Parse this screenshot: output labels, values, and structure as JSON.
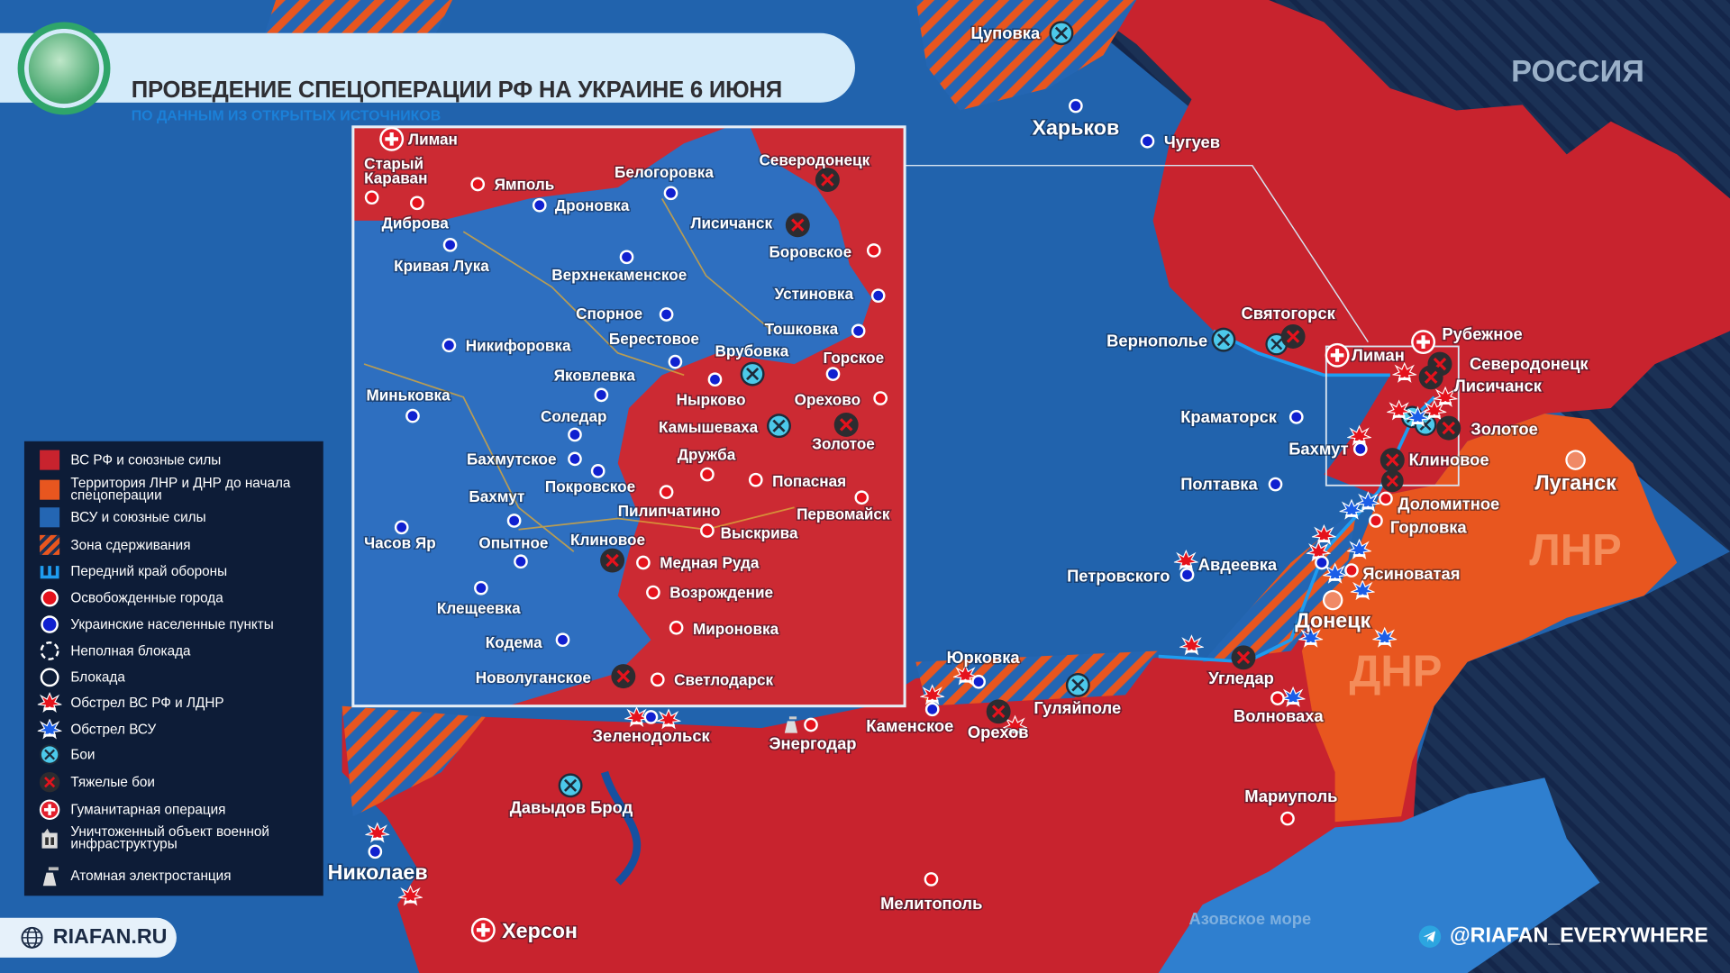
{
  "header": {
    "title": "ПРОВЕДЕНИЕ СПЕЦОПЕРАЦИИ РФ НА УКРАИНЕ 6 ИЮНЯ",
    "subtitle": "ПО ДАННЫМ ИЗ ОТКРЫТЫХ ИСТОЧНИКОВ",
    "logo_icon": "globe-europe-icon"
  },
  "colors": {
    "russian_forces": "#c8232e",
    "lnr_dnr_territory": "#e8561f",
    "ukrainian_forces": "#2466b3",
    "contain_zone_stripe": "#e8561f",
    "russia_territory": "#1b3155",
    "sea": "#2f7fcf"
  },
  "regions": {
    "russia": "РОССИЯ",
    "lnr": "ЛНР",
    "dnr": "ДНР",
    "sea": "Азовское море"
  },
  "legend": {
    "items": [
      {
        "label": "ВС РФ и союзные силы",
        "icon": "red-square"
      },
      {
        "label": "Территория ЛНР и ДНР до начала спецоперации",
        "icon": "orange-square"
      },
      {
        "label": "ВСУ и союзные силы",
        "icon": "blue-square"
      },
      {
        "label": "Зона сдерживания",
        "icon": "striped-square"
      },
      {
        "label": "Передний край обороны",
        "icon": "defense-line-icon"
      },
      {
        "label": "Освобожденные города",
        "icon": "red-dot"
      },
      {
        "label": "Украинские населенные пункты",
        "icon": "blue-dot"
      },
      {
        "label": "Неполная блокада",
        "icon": "dashed-circle"
      },
      {
        "label": "Блокада",
        "icon": "circle"
      },
      {
        "label": "Обстрел ВС РФ и ЛДНР",
        "icon": "red-explosion"
      },
      {
        "label": "Обстрел ВСУ",
        "icon": "blue-explosion"
      },
      {
        "label": "Бои",
        "icon": "battle-icon"
      },
      {
        "label": "Тяжелые бои",
        "icon": "heavy-battle-icon"
      },
      {
        "label": "Гуманитарная операция",
        "icon": "humanitarian-icon"
      },
      {
        "label": "Уничтоженный объект военной инфраструктуры",
        "icon": "destroyed-facility-icon"
      },
      {
        "label": "Атомная электростанция",
        "icon": "nuclear-plant-icon"
      }
    ]
  },
  "main_map": {
    "towns": [
      {
        "name": "Цуповка",
        "marker": "battle"
      },
      {
        "name": "Харьков",
        "marker": "ukrainian"
      },
      {
        "name": "Чугуев",
        "marker": "ukrainian"
      },
      {
        "name": "Святогорск",
        "marker": "heavy-battle"
      },
      {
        "name": "Вернополье",
        "marker": "battle"
      },
      {
        "name": "Лиман",
        "marker": "humanitarian"
      },
      {
        "name": "Рубежное",
        "marker": "humanitarian"
      },
      {
        "name": "Северодонецк",
        "marker": "heavy-battle"
      },
      {
        "name": "Лисичанск",
        "marker": "heavy-battle"
      },
      {
        "name": "Краматорск",
        "marker": "ukrainian"
      },
      {
        "name": "Золотое",
        "marker": "heavy-battle"
      },
      {
        "name": "Бахмут",
        "marker": "ukrainian"
      },
      {
        "name": "Клиновое",
        "marker": "heavy-battle"
      },
      {
        "name": "Луганск",
        "marker": "capital"
      },
      {
        "name": "Полтавка",
        "marker": "ukrainian"
      },
      {
        "name": "Доломитное",
        "marker": "liberated"
      },
      {
        "name": "Горловка",
        "marker": "liberated"
      },
      {
        "name": "Авдеевка",
        "marker": "ukrainian"
      },
      {
        "name": "Ясиноватая",
        "marker": "liberated"
      },
      {
        "name": "Петровского",
        "marker": "ukrainian"
      },
      {
        "name": "Донецк",
        "marker": "capital"
      },
      {
        "name": "Юрковка",
        "marker": "ukrainian"
      },
      {
        "name": "Угледар",
        "marker": "heavy-battle"
      },
      {
        "name": "Гуляйполе",
        "marker": "battle"
      },
      {
        "name": "Каменское",
        "marker": "ukrainian"
      },
      {
        "name": "Орехов",
        "marker": "heavy-battle"
      },
      {
        "name": "Волноваха",
        "marker": "liberated"
      },
      {
        "name": "Энергодар",
        "marker": "nuclear-plant"
      },
      {
        "name": "Зеленодольск",
        "marker": "ukrainian"
      },
      {
        "name": "Давыдов Брод",
        "marker": "battle"
      },
      {
        "name": "Мариуполь",
        "marker": "liberated"
      },
      {
        "name": "Николаев",
        "marker": "ukrainian"
      },
      {
        "name": "Мелитополь",
        "marker": "liberated"
      },
      {
        "name": "Херсон",
        "marker": "humanitarian"
      }
    ]
  },
  "inset": {
    "towns": [
      {
        "name": "Лиман",
        "marker": "humanitarian"
      },
      {
        "name_lines": [
          "Старый",
          "Караван"
        ],
        "marker": "liberated"
      },
      {
        "name": "Диброва",
        "marker": "liberated"
      },
      {
        "name": "Ямполь",
        "marker": "liberated"
      },
      {
        "name": "Дроновка",
        "marker": "ukrainian"
      },
      {
        "name": "Белогоровка",
        "marker": "ukrainian"
      },
      {
        "name": "Северодонецк",
        "marker": "heavy-battle"
      },
      {
        "name": "Лисичанск",
        "marker": "heavy-battle"
      },
      {
        "name": "Кривая Лука",
        "marker": "ukrainian"
      },
      {
        "name": "Боровское",
        "marker": "liberated"
      },
      {
        "name": "Верхнекаменское",
        "marker": "ukrainian"
      },
      {
        "name": "Устиновка",
        "marker": "ukrainian"
      },
      {
        "name": "Спорное",
        "marker": "ukrainian"
      },
      {
        "name": "Тошковка",
        "marker": "ukrainian"
      },
      {
        "name": "Никифоровка",
        "marker": "ukrainian"
      },
      {
        "name": "Берестовое",
        "marker": "ukrainian"
      },
      {
        "name": "Врубовка",
        "marker": "battle"
      },
      {
        "name": "Горское",
        "marker": "ukrainian"
      },
      {
        "name": "Яковлевка",
        "marker": "ukrainian"
      },
      {
        "name": "Миньковка",
        "marker": "ukrainian"
      },
      {
        "name": "Нырково",
        "marker": "ukrainian"
      },
      {
        "name": "Орехово",
        "marker": "liberated"
      },
      {
        "name": "Соледар",
        "marker": "ukrainian"
      },
      {
        "name": "Камышеваха",
        "marker": "battle"
      },
      {
        "name": "Золотое",
        "marker": "heavy-battle"
      },
      {
        "name": "Бахмутское",
        "marker": "ukrainian"
      },
      {
        "name": "Дружба",
        "marker": "liberated"
      },
      {
        "name": "Покровское",
        "marker": "ukrainian"
      },
      {
        "name": "Попасная",
        "marker": "liberated"
      },
      {
        "name": "Бахмут",
        "marker": "ukrainian"
      },
      {
        "name": "Пилипчатино",
        "marker": "liberated"
      },
      {
        "name": "Первомайск",
        "marker": "liberated"
      },
      {
        "name": "Часов Яр",
        "marker": "ukrainian"
      },
      {
        "name": "Опытное",
        "marker": "ukrainian"
      },
      {
        "name": "Клиновое",
        "marker": "heavy-battle"
      },
      {
        "name": "Выскрива",
        "marker": "liberated"
      },
      {
        "name": "Медная Руда",
        "marker": "liberated"
      },
      {
        "name": "Возрождение",
        "marker": "liberated"
      },
      {
        "name": "Клещеевка",
        "marker": "ukrainian"
      },
      {
        "name": "Мироновка",
        "marker": "liberated"
      },
      {
        "name": "Кодема",
        "marker": "ukrainian"
      },
      {
        "name": "Новолуганское",
        "marker": "heavy-battle"
      },
      {
        "name": "Светлодарск",
        "marker": "liberated"
      }
    ]
  },
  "footer": {
    "site": "RIAFAN.RU",
    "telegram": "@RIAFAN_EVERYWHERE"
  }
}
